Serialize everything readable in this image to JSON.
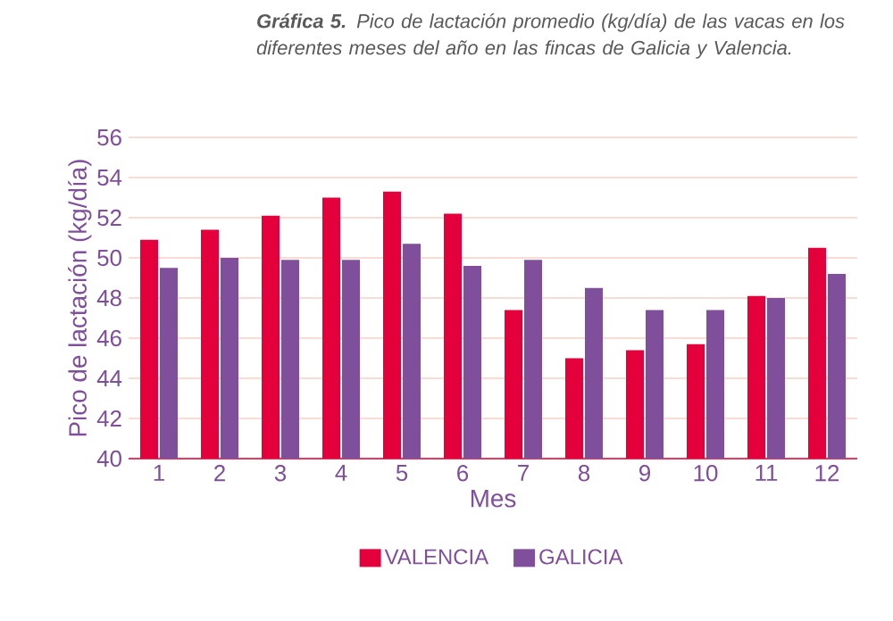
{
  "chart_data": {
    "type": "bar",
    "title": "**Gráfica 5.** Pico de lactación promedio (kg/día) de las vacas en los diferentes meses del año en las fincas de Galicia y Valencia.",
    "xlabel": "Mes",
    "ylabel": "Pico de lactación (kg/día)",
    "categories": [
      "1",
      "2",
      "3",
      "4",
      "5",
      "6",
      "7",
      "8",
      "9",
      "10",
      "11",
      "12"
    ],
    "series": [
      {
        "name": "VALENCIA",
        "color": "#e4003a",
        "values": [
          50.9,
          51.4,
          52.1,
          53.0,
          53.3,
          52.2,
          47.4,
          45.0,
          45.4,
          45.7,
          48.1,
          50.5
        ]
      },
      {
        "name": "GALICIA",
        "color": "#7f4f9b",
        "values": [
          49.5,
          50.0,
          49.9,
          49.9,
          50.7,
          49.6,
          49.9,
          48.5,
          47.4,
          47.4,
          48.0,
          49.2
        ]
      }
    ],
    "ylim": [
      40,
      56
    ],
    "yticks": [
      40,
      42,
      44,
      46,
      48,
      50,
      52,
      54,
      56
    ],
    "grid": "y",
    "legend": "bottom"
  }
}
